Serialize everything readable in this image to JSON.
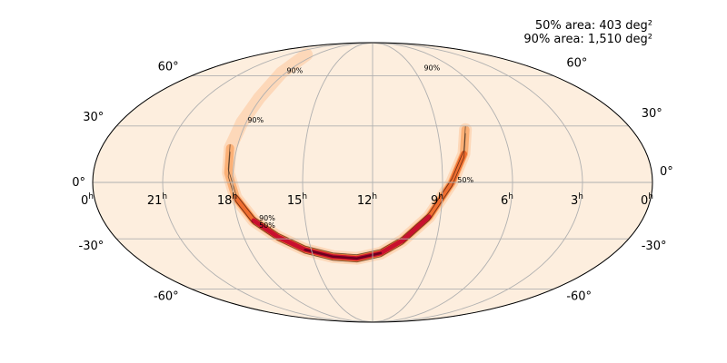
{
  "annotations": {
    "area_50": "50% area: 403 deg²",
    "area_90": "90% area: 1,510 deg²"
  },
  "chart_data": {
    "type": "heatmap",
    "projection": "mollweide",
    "grid": true,
    "ra_ticks": [
      {
        "ra_h": 24,
        "label": "0",
        "sup": "h"
      },
      {
        "ra_h": 21,
        "label": "21",
        "sup": "h"
      },
      {
        "ra_h": 18,
        "label": "18",
        "sup": "h"
      },
      {
        "ra_h": 15,
        "label": "15",
        "sup": "h"
      },
      {
        "ra_h": 12,
        "label": "12",
        "sup": "h"
      },
      {
        "ra_h": 9,
        "label": "9",
        "sup": "h"
      },
      {
        "ra_h": 6,
        "label": "6",
        "sup": "h"
      },
      {
        "ra_h": 3,
        "label": "3",
        "sup": "h"
      },
      {
        "ra_h": 0,
        "label": "0",
        "sup": "h"
      }
    ],
    "dec_ticks": [
      {
        "dec": 60,
        "label": "60°"
      },
      {
        "dec": 30,
        "label": "30°"
      },
      {
        "dec": 0,
        "label": "0°"
      },
      {
        "dec": -30,
        "label": "-30°"
      },
      {
        "dec": -60,
        "label": "-60°"
      }
    ],
    "contours": [
      {
        "level": "90%",
        "labels": [
          "90%",
          "90%",
          "90%",
          "90%"
        ]
      },
      {
        "level": "50%",
        "labels": [
          "50%",
          "50%"
        ]
      }
    ],
    "probability_arc": [
      [
        7.7,
        28
      ],
      [
        8.0,
        15
      ],
      [
        8.6,
        0
      ],
      [
        9.5,
        -18
      ],
      [
        10.6,
        -31
      ],
      [
        11.6,
        -38
      ],
      [
        12.8,
        -41
      ],
      [
        14.0,
        -40
      ],
      [
        15.3,
        -36
      ],
      [
        16.4,
        -29
      ],
      [
        17.3,
        -20
      ],
      [
        17.9,
        -8
      ],
      [
        18.2,
        5
      ],
      [
        18.3,
        18
      ],
      [
        18.2,
        32
      ],
      [
        18.1,
        46
      ],
      [
        18.3,
        62
      ],
      [
        19.0,
        76
      ]
    ],
    "colormap": [
      "#fdeede",
      "#fbb076",
      "#f06e30",
      "#c8102e",
      "#6d0020"
    ]
  }
}
